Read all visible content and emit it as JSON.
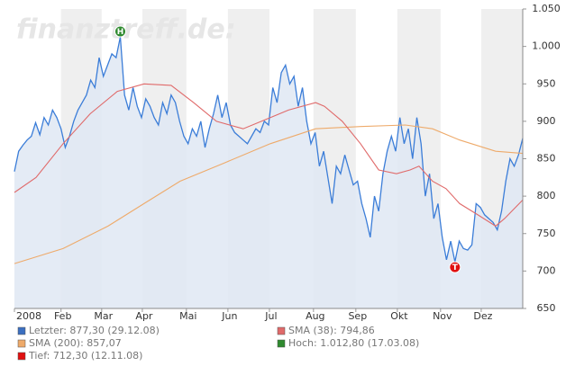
{
  "chart_data": {
    "type": "line",
    "watermark": "finanztreff.de:",
    "xlim": [
      0,
      12
    ],
    "xticks": [
      {
        "value": 0,
        "label": "2008"
      },
      {
        "value": 1.1,
        "label": "Feb"
      },
      {
        "value": 2.06,
        "label": "Mar"
      },
      {
        "value": 3.02,
        "label": "Apr"
      },
      {
        "value": 4.06,
        "label": "Mai"
      },
      {
        "value": 5.04,
        "label": "Jun"
      },
      {
        "value": 6.02,
        "label": "Jul"
      },
      {
        "value": 7.06,
        "label": "Aug"
      },
      {
        "value": 8.06,
        "label": "Sep"
      },
      {
        "value": 9.04,
        "label": "Okt"
      },
      {
        "value": 10.06,
        "label": "Nov"
      },
      {
        "value": 11.02,
        "label": "Dez"
      }
    ],
    "ylim": [
      650,
      1050
    ],
    "yticks": [
      {
        "value": 1050,
        "label": "1.050"
      },
      {
        "value": 1000,
        "label": "1.000"
      },
      950,
      900,
      850,
      800,
      750,
      700,
      650
    ],
    "series": [
      {
        "color": "#3b7dd8",
        "area": "#dfe7f3",
        "x": [
          0,
          0.1,
          0.2,
          0.3,
          0.4,
          0.5,
          0.6,
          0.7,
          0.8,
          0.9,
          1,
          1.1,
          1.2,
          1.3,
          1.4,
          1.5,
          1.6,
          1.7,
          1.8,
          1.9,
          2,
          2.1,
          2.2,
          2.3,
          2.4,
          2.5,
          2.6,
          2.7,
          2.8,
          2.9,
          3,
          3.1,
          3.2,
          3.3,
          3.4,
          3.5,
          3.6,
          3.7,
          3.8,
          3.9,
          4,
          4.1,
          4.2,
          4.3,
          4.4,
          4.5,
          4.6,
          4.7,
          4.8,
          4.9,
          5,
          5.1,
          5.2,
          5.3,
          5.4,
          5.5,
          5.6,
          5.7,
          5.8,
          5.9,
          6,
          6.1,
          6.2,
          6.3,
          6.4,
          6.5,
          6.6,
          6.7,
          6.8,
          6.9,
          7,
          7.1,
          7.2,
          7.3,
          7.4,
          7.5,
          7.6,
          7.7,
          7.8,
          7.9,
          8,
          8.1,
          8.2,
          8.3,
          8.4,
          8.5,
          8.6,
          8.7,
          8.8,
          8.9,
          9,
          9.1,
          9.2,
          9.3,
          9.4,
          9.5,
          9.6,
          9.7,
          9.8,
          9.9,
          10,
          10.1,
          10.2,
          10.3,
          10.4,
          10.5,
          10.6,
          10.7,
          10.8,
          10.9,
          11,
          11.1,
          11.2,
          11.3,
          11.4,
          11.5,
          11.6,
          11.7,
          11.8,
          11.9,
          12
        ],
        "values": [
          833,
          860,
          868,
          875,
          880,
          898,
          882,
          905,
          895,
          915,
          905,
          890,
          865,
          880,
          900,
          915,
          925,
          935,
          955,
          945,
          985,
          960,
          975,
          990,
          985,
          1012.8,
          935,
          915,
          945,
          920,
          905,
          930,
          920,
          905,
          895,
          925,
          910,
          935,
          925,
          900,
          880,
          870,
          890,
          880,
          900,
          865,
          890,
          910,
          935,
          905,
          925,
          895,
          885,
          880,
          875,
          870,
          880,
          890,
          885,
          900,
          895,
          945,
          925,
          965,
          975,
          950,
          960,
          920,
          945,
          900,
          870,
          885,
          840,
          860,
          825,
          790,
          840,
          830,
          855,
          835,
          815,
          820,
          790,
          770,
          745,
          800,
          780,
          830,
          860,
          880,
          860,
          905,
          870,
          890,
          850,
          905,
          870,
          800,
          830,
          770,
          790,
          745,
          715,
          740,
          712.3,
          740,
          730,
          728,
          735,
          790,
          785,
          775,
          770,
          765,
          755,
          780,
          820,
          850,
          840,
          855,
          877.3
        ]
      },
      {
        "color": "#e06a6a",
        "x": [
          0,
          0.51,
          1.15,
          1.79,
          2.43,
          3.06,
          3.7,
          4.23,
          4.77,
          5.4,
          5.83,
          6.47,
          7.11,
          7.32,
          7.74,
          8.17,
          8.6,
          9.02,
          9.34,
          9.55,
          9.87,
          10.19,
          10.51,
          10.94,
          11.36,
          11.57,
          12
        ],
        "values": [
          805,
          825,
          870,
          910,
          940,
          950,
          948,
          925,
          900,
          890,
          900,
          915,
          925,
          920,
          900,
          870,
          835,
          830,
          835,
          840,
          820,
          810,
          790,
          775,
          760,
          770,
          794.86
        ]
      },
      {
        "color": "#eeaa6a",
        "x": [
          0,
          1.15,
          2.21,
          3.06,
          3.91,
          4.98,
          6.04,
          7.11,
          8.17,
          9.23,
          9.87,
          10.51,
          11.36,
          12
        ],
        "values": [
          710,
          730,
          760,
          790,
          820,
          845,
          870,
          890,
          893,
          895,
          890,
          875,
          860,
          857.07
        ]
      }
    ],
    "high": {
      "x": 2.5,
      "value": 1012.8,
      "label": "H",
      "color": "#2f8a2f"
    },
    "low": {
      "x": 10.4,
      "value": 712.3,
      "label": "T",
      "color": "#e01010"
    },
    "legend": [
      {
        "label": "Letzter: 877,30 (29.12.08)",
        "color": "#3b6fc0"
      },
      {
        "label": "SMA (200): 857,07",
        "color": "#eeaa6a"
      },
      {
        "label": "Tief: 712,30 (12.11.08)",
        "color": "#e01010"
      },
      {
        "label": "SMA (38): 794,86",
        "color": "#e06a6a"
      },
      {
        "label": "Hoch: 1.012,80 (17.03.08)",
        "color": "#2f8a2f"
      }
    ]
  }
}
